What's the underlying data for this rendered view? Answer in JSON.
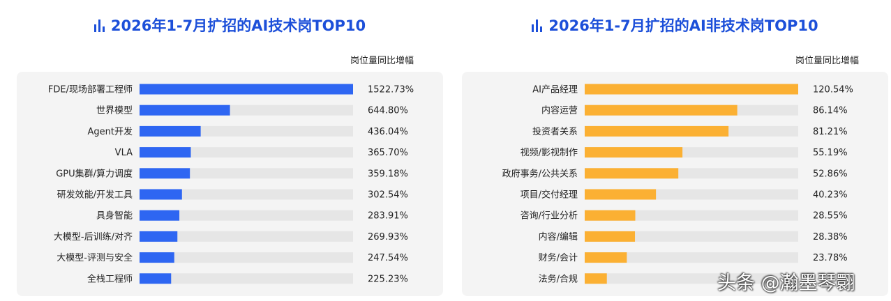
{
  "charts": [
    {
      "title": "2026年1-7月扩招的AI技术岗TOP10",
      "metric_label": "岗位量同比增幅",
      "bar_color": "#2e66f2",
      "track_color": "#e6e6e6",
      "title_color": "#1c4fd9",
      "icon": "bar-chart-icon"
    },
    {
      "title": "2026年1-7月扩招的AI非技术岗TOP10",
      "metric_label": "岗位量同比增幅",
      "bar_color": "#fbb033",
      "track_color": "#e6e6e6",
      "title_color": "#1c4fd9",
      "icon": "bar-chart-icon"
    }
  ],
  "chart_data": [
    {
      "type": "bar",
      "orientation": "horizontal",
      "title": "2026年1-7月扩招的AI技术岗TOP10",
      "metric": "岗位量同比增幅",
      "categories": [
        "FDE/现场部署工程师",
        "世界模型",
        "Agent开发",
        "VLA",
        "GPU集群/算力调度",
        "研发效能/开发工具",
        "具身智能",
        "大模型-后训练/对齐",
        "大模型-评测与安全",
        "全栈工程师"
      ],
      "values": [
        1522.73,
        644.8,
        436.04,
        365.7,
        359.18,
        302.54,
        283.91,
        269.93,
        247.54,
        225.23
      ],
      "value_labels": [
        "1522.73%",
        "644.80%",
        "436.04%",
        "365.70%",
        "359.18%",
        "302.54%",
        "283.91%",
        "269.93%",
        "247.54%",
        "225.23%"
      ],
      "xlim": [
        0,
        1522.73
      ],
      "grid": false
    },
    {
      "type": "bar",
      "orientation": "horizontal",
      "title": "2026年1-7月扩招的AI非技术岗TOP10",
      "metric": "岗位量同比增幅",
      "categories": [
        "AI产品经理",
        "内容运营",
        "投资者关系",
        "视频/影视制作",
        "政府事务/公共关系",
        "项目/交付经理",
        "咨询/行业分析",
        "内容/编辑",
        "财务/会计",
        "法务/合规"
      ],
      "values": [
        120.54,
        86.14,
        81.21,
        55.19,
        52.86,
        40.23,
        28.55,
        28.38,
        23.78,
        12.5
      ],
      "value_labels": [
        "120.54%",
        "86.14%",
        "81.21%",
        "55.19%",
        "52.86%",
        "40.23%",
        "28.55%",
        "28.38%",
        "23.78%",
        ""
      ],
      "xlim": [
        0,
        120.54
      ],
      "grid": false
    }
  ],
  "watermark": "头条 @瀚墨琴翾"
}
